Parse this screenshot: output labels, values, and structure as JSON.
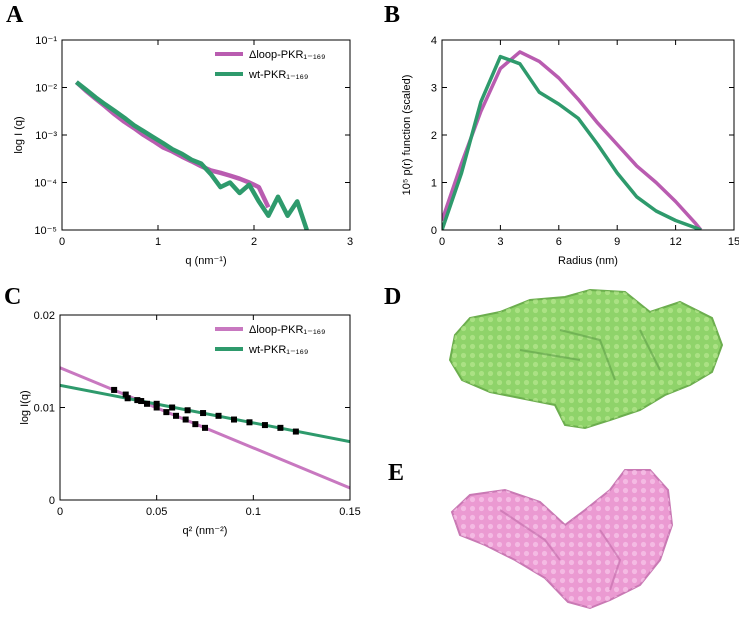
{
  "figure_labels": [
    "A",
    "B",
    "C",
    "D",
    "E"
  ],
  "chart_data": [
    {
      "type": "line",
      "xlabel": "q (nm⁻¹)",
      "ylabel": "log I (q)",
      "log_y": true,
      "legend": "upper right",
      "xlim": [
        0,
        3
      ],
      "xticks": [
        0,
        1,
        2,
        3
      ],
      "ylim": [
        1e-05,
        0.1
      ],
      "yticks": [
        {
          "value": 1e-05,
          "label": "10⁻⁵"
        },
        {
          "value": 0.0001,
          "label": "10⁻⁴"
        },
        {
          "value": 0.001,
          "label": "10⁻³"
        },
        {
          "value": 0.01,
          "label": "10⁻²"
        },
        {
          "value": 0.1,
          "label": "10⁻¹"
        }
      ],
      "x": [
        0.15,
        0.25,
        0.35,
        0.45,
        0.55,
        0.65,
        0.75,
        0.85,
        0.95,
        1.05,
        1.15,
        1.25,
        1.35,
        1.45,
        1.55,
        1.65,
        1.75,
        1.85,
        1.95,
        2.05,
        2.15,
        2.25,
        2.35,
        2.45,
        2.55
      ],
      "series": [
        {
          "name": "Δloop-PKR₁₋₁₆₉",
          "color": "#b95cb0",
          "values": [
            0.013,
            0.0085,
            0.0058,
            0.004,
            0.0027,
            0.0019,
            0.0014,
            0.001,
            0.00075,
            0.00055,
            0.00045,
            0.00035,
            0.00028,
            0.00022,
            0.00018,
            0.00016,
            0.00014,
            0.00012,
            0.0001,
            8e-05,
            3e-05,
            null,
            null,
            null,
            null
          ]
        },
        {
          "name": "wt-PKR₁₋₁₆₉",
          "color": "#2e9a6c",
          "values": [
            0.013,
            0.009,
            0.0062,
            0.0044,
            0.0032,
            0.0023,
            0.0016,
            0.0012,
            0.0009,
            0.00068,
            0.0005,
            0.0004,
            0.0003,
            0.00025,
            0.00015,
            8e-05,
            0.0001,
            6e-05,
            9e-05,
            4e-05,
            2e-05,
            5e-05,
            2e-05,
            4e-05,
            1e-05
          ]
        }
      ]
    },
    {
      "type": "line",
      "xlabel": "Radius (nm)",
      "ylabel": "10⁵ p(r) function (scaled)",
      "xlim": [
        0,
        15
      ],
      "xticks": [
        0,
        3,
        6,
        9,
        12,
        15
      ],
      "ylim": [
        0,
        4
      ],
      "yticks": [
        0,
        1,
        2,
        3,
        4
      ],
      "x": [
        0,
        1,
        2,
        3,
        4,
        5,
        6,
        7,
        8,
        9,
        10,
        11,
        12,
        13,
        13.3
      ],
      "series": [
        {
          "color": "#b95cb0",
          "values": [
            0.2,
            1.4,
            2.5,
            3.4,
            3.75,
            3.55,
            3.2,
            2.75,
            2.25,
            1.8,
            1.35,
            1.0,
            0.6,
            0.15,
            0
          ]
        },
        {
          "color": "#2e9a6c",
          "values": [
            0,
            1.2,
            2.7,
            3.65,
            3.5,
            2.9,
            2.65,
            2.35,
            1.8,
            1.2,
            0.7,
            0.4,
            0.2,
            0.05,
            0
          ]
        }
      ]
    },
    {
      "type": "line",
      "xlabel": "q² (nm⁻²)",
      "ylabel": "log I(q)",
      "legend": "upper right",
      "xlim": [
        0,
        0.15
      ],
      "xticks": [
        0,
        0.05,
        0.1,
        0.15
      ],
      "ylim": [
        0,
        0.02
      ],
      "yticks": [
        0,
        0.01,
        0.02
      ],
      "series": [
        {
          "name": "Δloop-PKR₁₋₁₆₉",
          "color": "#c878c0",
          "kind": "line",
          "x": [
            0,
            0.15
          ],
          "values": [
            0.0143,
            0.0013
          ]
        },
        {
          "name": "wt-PKR₁₋₁₆₉",
          "color": "#2e9a6c",
          "kind": "line",
          "x": [
            0,
            0.15
          ],
          "values": [
            0.0124,
            0.0063
          ]
        },
        {
          "color": "#000000",
          "kind": "points",
          "x": [
            0.028,
            0.034,
            0.04,
            0.045,
            0.05,
            0.055,
            0.06,
            0.065,
            0.07,
            0.075
          ],
          "values": [
            0.0119,
            0.0114,
            0.0108,
            0.0104,
            0.01,
            0.0095,
            0.0091,
            0.0087,
            0.0082,
            0.0078
          ]
        },
        {
          "color": "#000000",
          "kind": "points",
          "x": [
            0.035,
            0.042,
            0.05,
            0.058,
            0.066,
            0.074,
            0.082,
            0.09,
            0.098,
            0.106,
            0.114,
            0.122
          ],
          "values": [
            0.011,
            0.0107,
            0.0104,
            0.01,
            0.0097,
            0.0094,
            0.0091,
            0.0087,
            0.0084,
            0.0081,
            0.0078,
            0.0074
          ]
        }
      ]
    }
  ]
}
